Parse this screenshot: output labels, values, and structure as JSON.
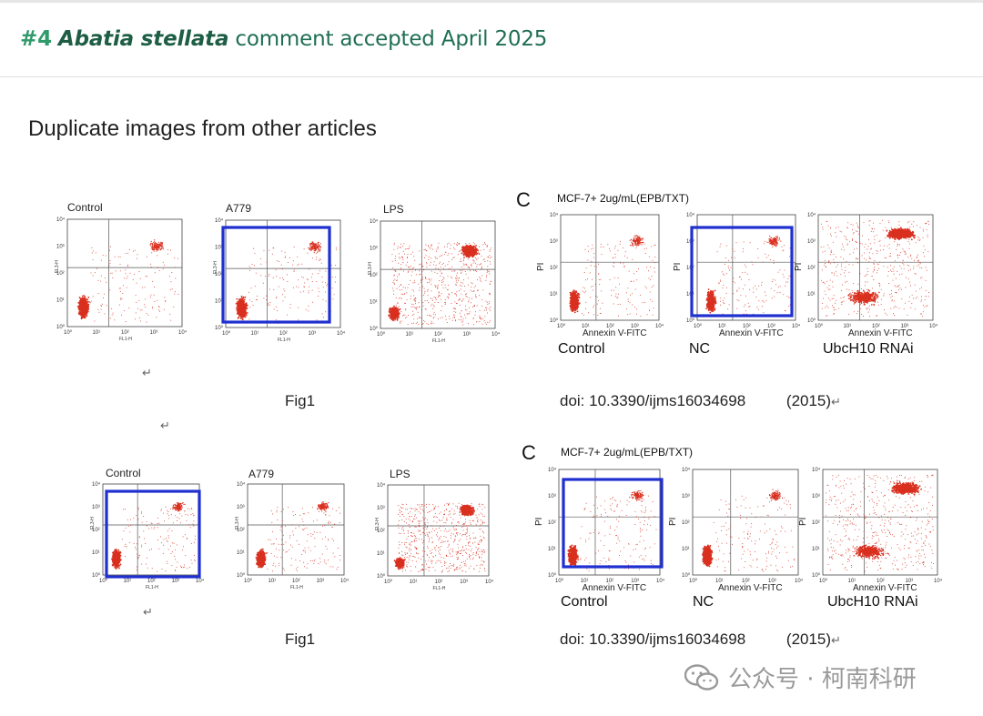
{
  "header": {
    "number": "#4",
    "species": "Abatia stellata",
    "rest": "comment accepted April 2025"
  },
  "section_title": "Duplicate images from other articles",
  "top_left": {
    "titles": [
      "Control",
      "A779",
      "LPS"
    ],
    "caption": "Fig1"
  },
  "bottom_left": {
    "titles": [
      "Control",
      "A779",
      "LPS"
    ],
    "caption": "Fig1"
  },
  "top_right": {
    "letter": "C",
    "title": "MCF-7+ 2ug/mL(EPB/TXT)",
    "xlabel": "Annexin V-FITC",
    "ylabel": "PI",
    "labels": [
      "Control",
      "NC",
      "UbcH10 RNAi"
    ],
    "doi": "doi: 10.3390/ijms16034698",
    "year": "(2015)"
  },
  "bottom_right": {
    "letter": "C",
    "title": "MCF-7+ 2ug/mL(EPB/TXT)",
    "xlabel": "Annexin V-FITC",
    "ylabel": "PI",
    "labels": [
      "Control",
      "NC",
      "UbcH10 RNAi"
    ],
    "doi": "doi: 10.3390/ijms16034698",
    "year": "(2015)"
  },
  "axis_ticks": {
    "x": [
      "10⁰",
      "10¹",
      "10²",
      "10³",
      "10⁴"
    ],
    "y": [
      "10⁰",
      "10¹",
      "10²",
      "10³",
      "10⁴"
    ],
    "fl1": "FL1-H",
    "fl3": "FL3-H"
  },
  "para_mark": "↵",
  "watermark": "公众号 · 柯南科研",
  "colors": {
    "dots": "#d9301f",
    "box": "#1f2fd0",
    "header_green": "#1f6e53"
  }
}
